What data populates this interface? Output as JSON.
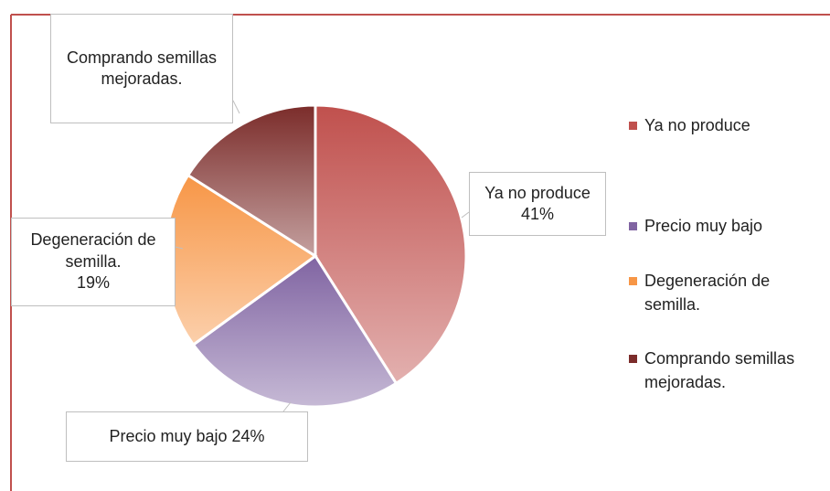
{
  "chart_data": {
    "type": "pie",
    "categories": [
      "Ya no produce",
      "Precio muy bajo",
      "Degeneración de semilla.",
      "Comprando semillas mejoradas."
    ],
    "values": [
      41,
      24,
      19,
      16
    ],
    "value_labels": [
      "41%",
      "24%",
      "19%",
      null
    ],
    "colors": [
      "#c0504d",
      "#8064a2",
      "#f79646",
      "#7b2c2a"
    ],
    "legend": "right"
  }
}
